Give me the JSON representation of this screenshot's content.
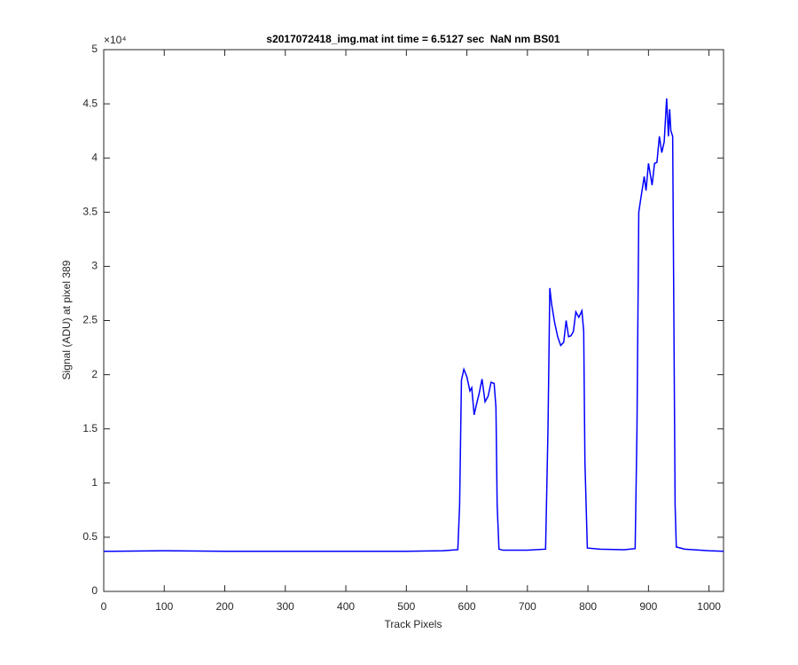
{
  "chart_data": {
    "type": "line",
    "title": "s2017072418_img.mat int time = 6.5127 sec  NaN nm BS01",
    "x_label": "Track Pixels",
    "y_label": "Signal (ADU) at pixel 389",
    "y_exponent": "×10⁴",
    "color": "#0000ff",
    "x": [
      0,
      100,
      200,
      300,
      400,
      500,
      560,
      585,
      588,
      591,
      595,
      600,
      605,
      608,
      612,
      616,
      620,
      625,
      630,
      635,
      640,
      645,
      648,
      650,
      653,
      660,
      700,
      730,
      734,
      737,
      740,
      745,
      750,
      755,
      760,
      764,
      768,
      772,
      776,
      780,
      785,
      790,
      793,
      795,
      799,
      820,
      860,
      878,
      881,
      884,
      888,
      893,
      896,
      900,
      903,
      906,
      910,
      914,
      918,
      922,
      926,
      930,
      933,
      935,
      937,
      940,
      942,
      944,
      946,
      960,
      1000,
      1024
    ],
    "values": [
      3700,
      3750,
      3700,
      3700,
      3700,
      3700,
      3750,
      3850,
      8000,
      19500,
      20500,
      19800,
      18500,
      18800,
      16300,
      17300,
      18200,
      19600,
      17500,
      18000,
      19300,
      19200,
      17000,
      8000,
      3900,
      3800,
      3800,
      3900,
      15000,
      28000,
      26500,
      24800,
      23500,
      22700,
      23000,
      25000,
      23500,
      23600,
      24000,
      25800,
      25300,
      25900,
      24000,
      12000,
      4000,
      3900,
      3850,
      3950,
      15000,
      35000,
      36500,
      38300,
      37000,
      39500,
      38500,
      37500,
      39500,
      39600,
      42000,
      40500,
      41500,
      45500,
      42000,
      44500,
      42500,
      42000,
      25000,
      8000,
      4100,
      3900,
      3750,
      3700
    ],
    "xlim": [
      0,
      1024
    ],
    "xticks": [
      0,
      100,
      200,
      300,
      400,
      500,
      600,
      700,
      800,
      900,
      1000
    ],
    "ylim": [
      0,
      50000
    ],
    "yticks": [
      0,
      {
        "value": 5000,
        "label": "0.5"
      },
      {
        "value": 10000,
        "label": "1"
      },
      {
        "value": 15000,
        "label": "1.5"
      },
      {
        "value": 20000,
        "label": "2"
      },
      {
        "value": 25000,
        "label": "2.5"
      },
      {
        "value": 30000,
        "label": "3"
      },
      {
        "value": 35000,
        "label": "3.5"
      },
      {
        "value": 40000,
        "label": "4"
      },
      {
        "value": 45000,
        "label": "4.5"
      },
      {
        "value": 50000,
        "label": "5"
      }
    ],
    "grid": false
  }
}
